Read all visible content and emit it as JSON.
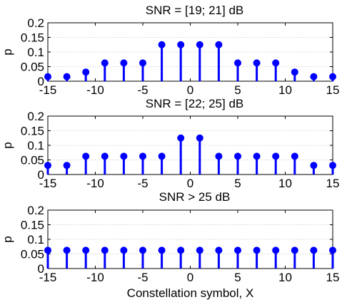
{
  "colors": {
    "series": "#0000ff",
    "axis": "#000000",
    "grid": "#c8c8c8",
    "background": "#ffffff"
  },
  "chart_data": [
    {
      "type": "stem",
      "title": "SNR  = [19; 21] dB",
      "xlabel": "",
      "ylabel": "p",
      "xlim": [
        -15,
        15
      ],
      "ylim": [
        0,
        0.2
      ],
      "xticks": [
        "-15",
        "-10",
        "-5",
        "0",
        "5",
        "10",
        "15"
      ],
      "yticks": [
        "0",
        "0.05",
        "0.1",
        "0.15",
        "0.2"
      ],
      "grid": "horizontal",
      "x": [
        -15,
        -13,
        -11,
        -9,
        -7,
        -5,
        -3,
        -1,
        1,
        3,
        5,
        7,
        9,
        11,
        13,
        15
      ],
      "y": [
        0.0156,
        0.0156,
        0.03125,
        0.0625,
        0.0625,
        0.0625,
        0.125,
        0.125,
        0.125,
        0.125,
        0.0625,
        0.0625,
        0.0625,
        0.03125,
        0.0156,
        0.0156
      ]
    },
    {
      "type": "stem",
      "title": "SNR  = [22; 25] dB",
      "xlabel": "",
      "ylabel": "p",
      "xlim": [
        -15,
        15
      ],
      "ylim": [
        0,
        0.2
      ],
      "xticks": [
        "-15",
        "-10",
        "-5",
        "0",
        "5",
        "10",
        "15"
      ],
      "yticks": [
        "0",
        "0.05",
        "0.1",
        "0.15",
        "0.2"
      ],
      "grid": "horizontal",
      "x": [
        -15,
        -13,
        -11,
        -9,
        -7,
        -5,
        -3,
        -1,
        1,
        3,
        5,
        7,
        9,
        11,
        13,
        15
      ],
      "y": [
        0.03125,
        0.03125,
        0.0625,
        0.0625,
        0.0625,
        0.0625,
        0.0625,
        0.125,
        0.125,
        0.0625,
        0.0625,
        0.0625,
        0.0625,
        0.0625,
        0.03125,
        0.03125
      ]
    },
    {
      "type": "stem",
      "title": "SNR  > 25 dB",
      "xlabel": "Constellation symbol, X",
      "ylabel": "p",
      "xlim": [
        -15,
        15
      ],
      "ylim": [
        0,
        0.2
      ],
      "xticks": [
        "-15",
        "-10",
        "-5",
        "0",
        "5",
        "10",
        "15"
      ],
      "yticks": [
        "0",
        "0.05",
        "0.1",
        "0.15",
        "0.2"
      ],
      "grid": "horizontal",
      "x": [
        -15,
        -13,
        -11,
        -9,
        -7,
        -5,
        -3,
        -1,
        1,
        3,
        5,
        7,
        9,
        11,
        13,
        15
      ],
      "y": [
        0.0625,
        0.0625,
        0.0625,
        0.0625,
        0.0625,
        0.0625,
        0.0625,
        0.0625,
        0.0625,
        0.0625,
        0.0625,
        0.0625,
        0.0625,
        0.0625,
        0.0625,
        0.0625
      ]
    }
  ]
}
